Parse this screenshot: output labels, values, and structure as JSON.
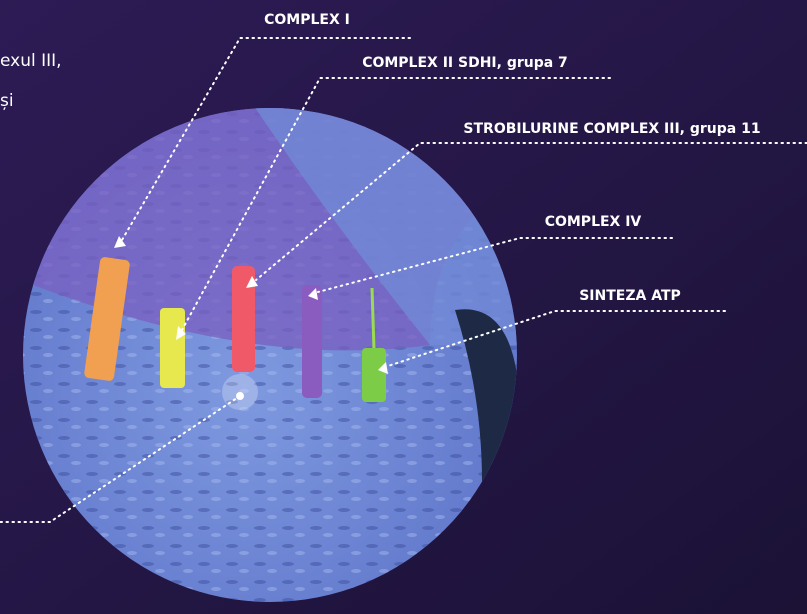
{
  "side_text": [
    "exul III,",
    "și"
  ],
  "labels": [
    "COMPLEX I",
    "COMPLEX II SDHI, grupa 7",
    "STROBILURINE COMPLEX III, grupa 11",
    "COMPLEX IV",
    "SINTEZA ATP"
  ]
}
